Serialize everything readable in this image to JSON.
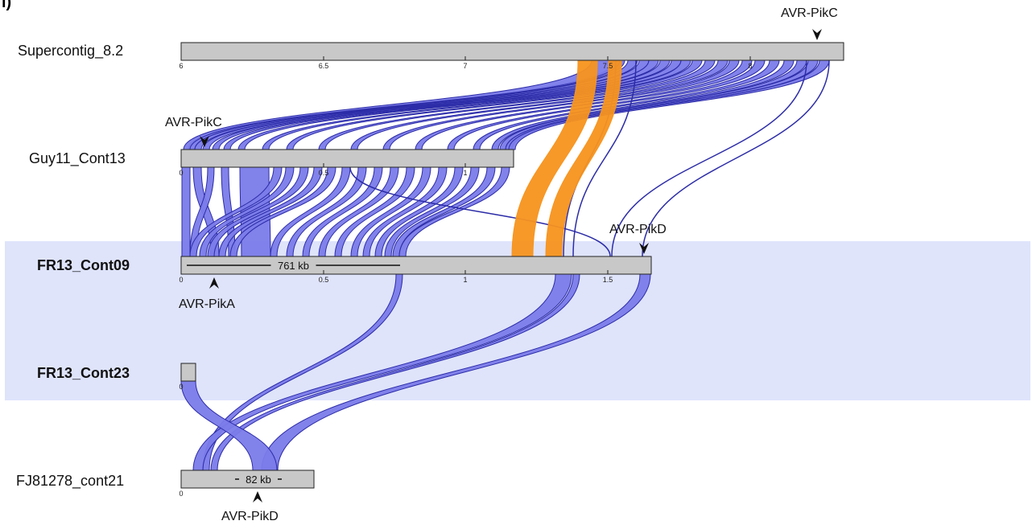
{
  "panel_letter": "i)",
  "contigs": {
    "supercontig": {
      "name": "Supercontig_8.2",
      "ticks": [
        "6",
        "6.5",
        "7",
        "7.5",
        "8"
      ]
    },
    "guy11": {
      "name": "Guy11_Cont13",
      "ticks": [
        "0",
        "0.5",
        "1"
      ]
    },
    "fr13_09": {
      "name": "FR13_Cont09",
      "ticks": [
        "0",
        "0.5",
        "1",
        "1.5"
      ],
      "scale_label": "761 kb"
    },
    "fr13_23": {
      "name": "FR13_Cont23",
      "ticks": [
        "0"
      ]
    },
    "fj81278": {
      "name": "FJ81278_cont21",
      "ticks": [
        "0"
      ],
      "scale_label": "82 kb"
    }
  },
  "markers": {
    "m1": "AVR-PikC",
    "m2": "AVR-PikC",
    "m3": "AVR-PikD",
    "m4": "AVR-PikA",
    "m5": "AVR-PikD"
  },
  "colors": {
    "synteny": "#7b7bea",
    "synteny_edge": "#2c2ca8",
    "inversion": "#f7941d",
    "contig_fill": "#c8c8c8",
    "highlight": "#dfe4fb"
  }
}
